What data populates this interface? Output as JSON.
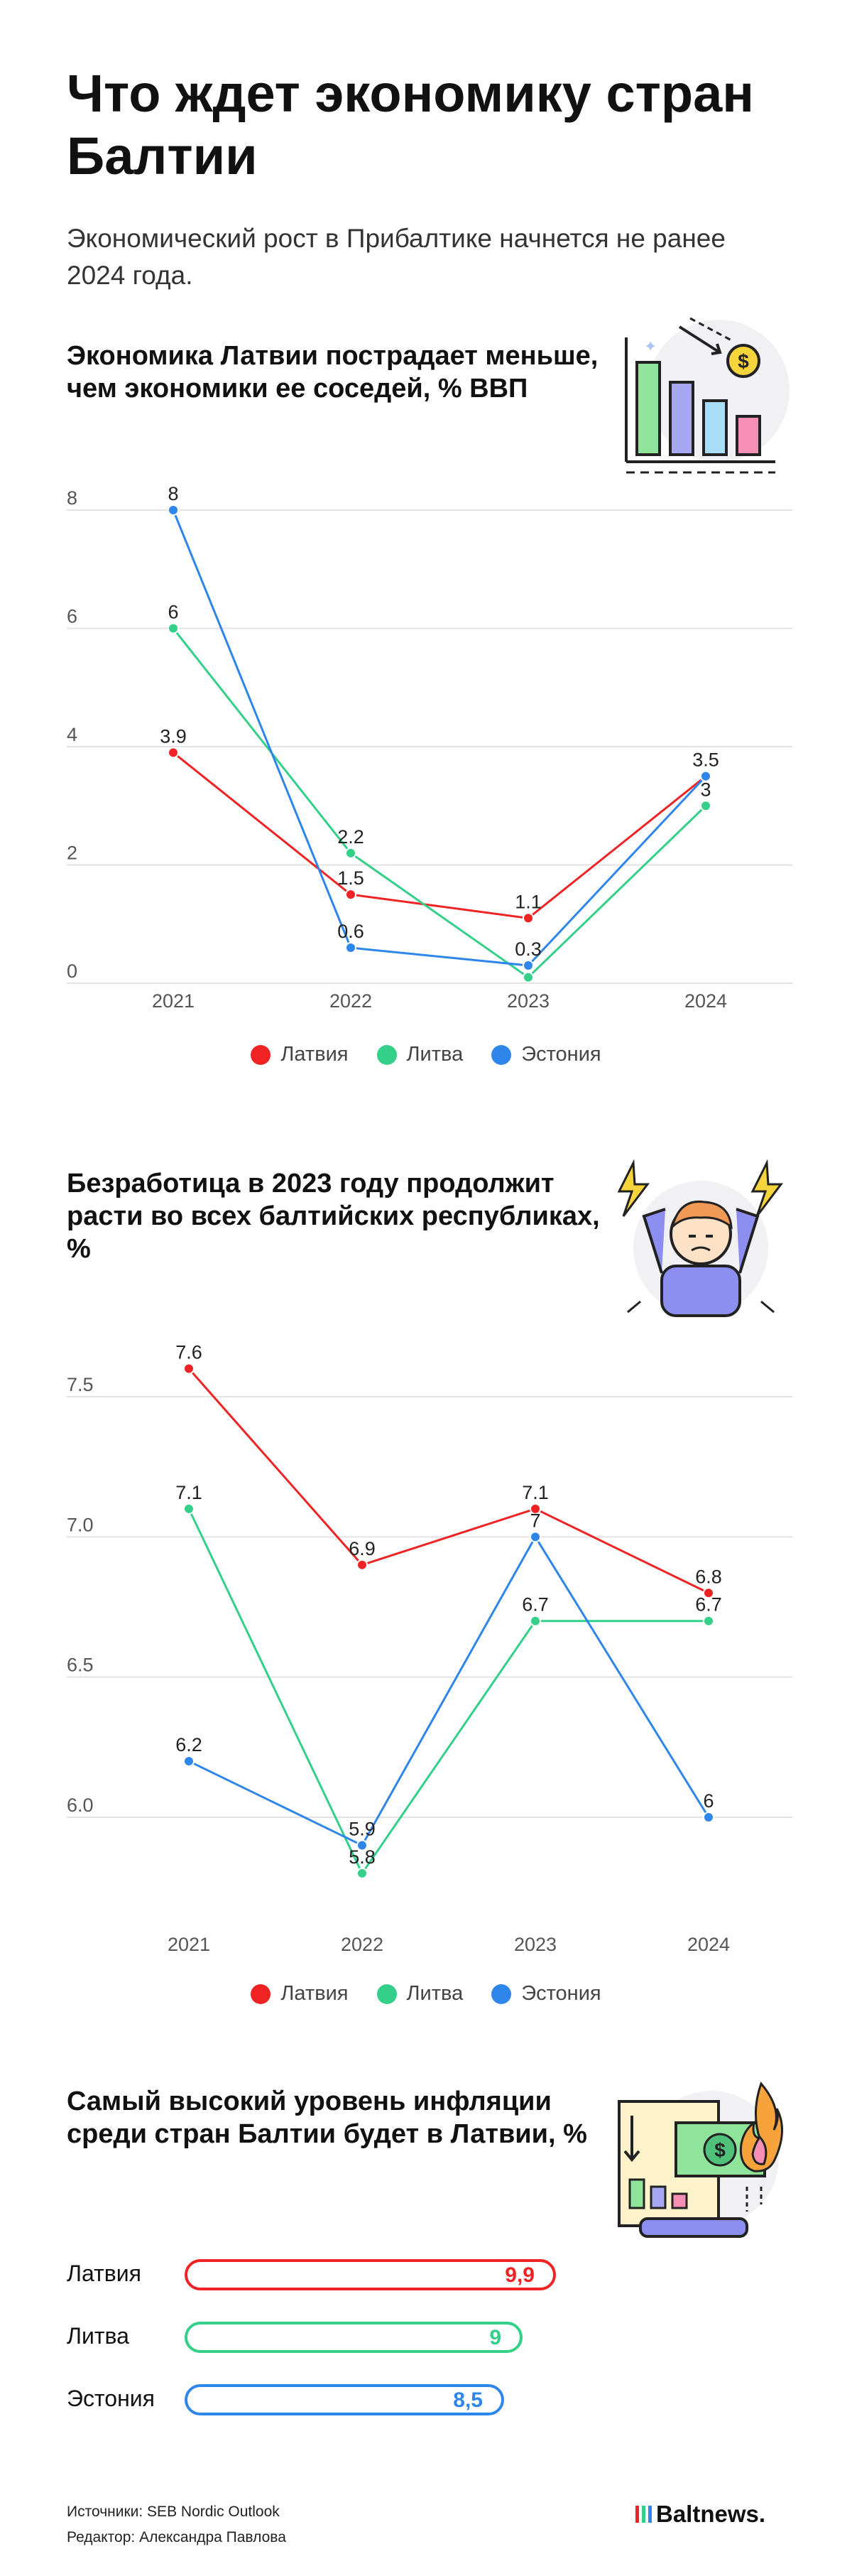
{
  "header": {
    "title": "Что ждет экономику стран Балтии",
    "subtitle": "Экономический рост в Прибалтике начнется не ранее 2024 года."
  },
  "colors": {
    "latvia": "#ef2323",
    "lithuania": "#34cf88",
    "estonia": "#2e86ea"
  },
  "section1": {
    "title": "Экономика Латвии пострадает меньше, чем экономики ее соседей, % ВВП"
  },
  "section2": {
    "title": "Безработица в 2023 году продолжит расти во всех балтийских республиках, %"
  },
  "section3": {
    "title": "Самый высокий уровень инфляции среди стран Балтии будет в Латвии, %"
  },
  "chart_data": [
    {
      "type": "line",
      "title": "Экономика Латвии пострадает меньше, чем экономики ее соседей, % ВВП",
      "x": [
        "2021",
        "2022",
        "2023",
        "2024"
      ],
      "ylim": [
        0,
        8
      ],
      "yticks": [
        "0",
        "2",
        "4",
        "6",
        "8"
      ],
      "grid": true,
      "legend": "bottom",
      "series": [
        {
          "name": "Латвия",
          "color": "#ef2323",
          "values": [
            3.9,
            1.5,
            1.1,
            3.5
          ],
          "labels": [
            "3.9",
            "1.5",
            "1.1",
            ""
          ]
        },
        {
          "name": "Литва",
          "color": "#34cf88",
          "values": [
            6,
            2.2,
            0.1,
            3
          ],
          "labels": [
            "6",
            "2.2",
            "",
            "3"
          ]
        },
        {
          "name": "Эстония",
          "color": "#2e86ea",
          "values": [
            8,
            0.6,
            0.3,
            3.5
          ],
          "labels": [
            "8",
            "0.6",
            "0.3",
            "3.5"
          ]
        }
      ]
    },
    {
      "type": "line",
      "title": "Безработица в 2023 году продолжит расти во всех балтийских республиках, %",
      "x": [
        "2021",
        "2022",
        "2023",
        "2024"
      ],
      "ylim": [
        6.0,
        7.5
      ],
      "yticks": [
        "6.0",
        "6.5",
        "7.0",
        "7.5"
      ],
      "grid": true,
      "legend": "bottom",
      "series": [
        {
          "name": "Латвия",
          "color": "#ef2323",
          "values": [
            7.6,
            6.9,
            7.1,
            6.8
          ],
          "labels": [
            "7.6",
            "6.9",
            "7.1",
            "6.8"
          ]
        },
        {
          "name": "Литва",
          "color": "#34cf88",
          "values": [
            7.1,
            5.8,
            6.7,
            6.7
          ],
          "labels": [
            "7.1",
            "5.8",
            "6.7",
            "6.7"
          ]
        },
        {
          "name": "Эстония",
          "color": "#2e86ea",
          "values": [
            6.2,
            5.9,
            7.0,
            6.0
          ],
          "labels": [
            "6.2",
            "5.9",
            "7",
            "6"
          ]
        }
      ]
    },
    {
      "type": "bar",
      "title": "Самый высокий уровень инфляции среди стран Балтии будет в Латвии, %",
      "categories": [
        "Латвия",
        "Литва",
        "Эстония"
      ],
      "values": [
        9.9,
        9,
        8.5
      ],
      "value_labels": [
        "9,9",
        "9",
        "8,5"
      ],
      "colors": [
        "#ef2323",
        "#34cf88",
        "#2e86ea"
      ]
    }
  ],
  "footer": {
    "sources": "Источники: SEB Nordic Outlook",
    "editor": "Редактор: Александра Павлова",
    "brand": "Baltnews."
  }
}
